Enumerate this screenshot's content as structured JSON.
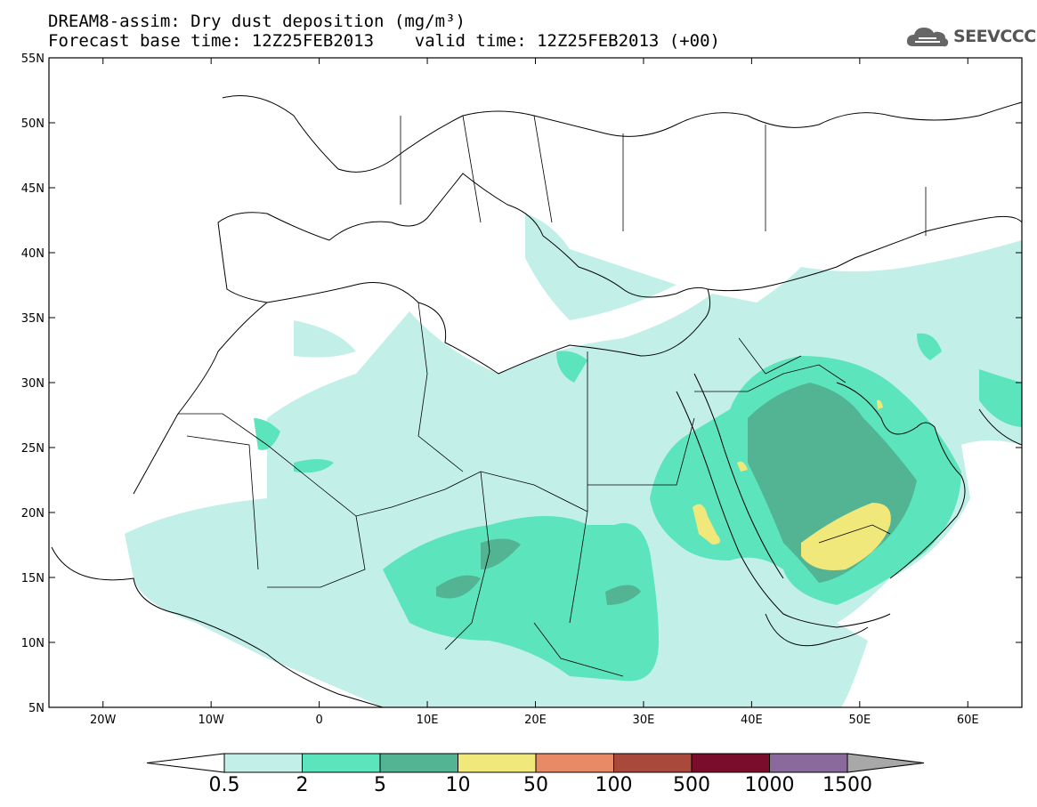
{
  "title_line1": "DREAM8-assim: Dry dust deposition (mg/m³)",
  "title_line2": "Forecast base time: 12Z25FEB2013    valid time: 12Z25FEB2013 (+00)",
  "logo_text": "SEEVCCC",
  "map": {
    "lon_range": [
      -25,
      65
    ],
    "lat_range": [
      5,
      55
    ],
    "lat_labels": [
      "55N",
      "50N",
      "45N",
      "40N",
      "35N",
      "30N",
      "25N",
      "20N",
      "15N",
      "10N",
      "5N"
    ],
    "lon_labels": [
      "20W",
      "10W",
      "0",
      "10E",
      "20E",
      "30E",
      "40E",
      "50E",
      "60E"
    ]
  },
  "colorbar": {
    "labels": [
      "0.5",
      "2",
      "5",
      "10",
      "50",
      "100",
      "500",
      "1000",
      "1500"
    ],
    "colors": [
      "#c2f0e8",
      "#5ce4bc",
      "#52b493",
      "#f0e87a",
      "#e98a66",
      "#a9493b",
      "#7a0c2c",
      "#8a6a9c"
    ]
  }
}
